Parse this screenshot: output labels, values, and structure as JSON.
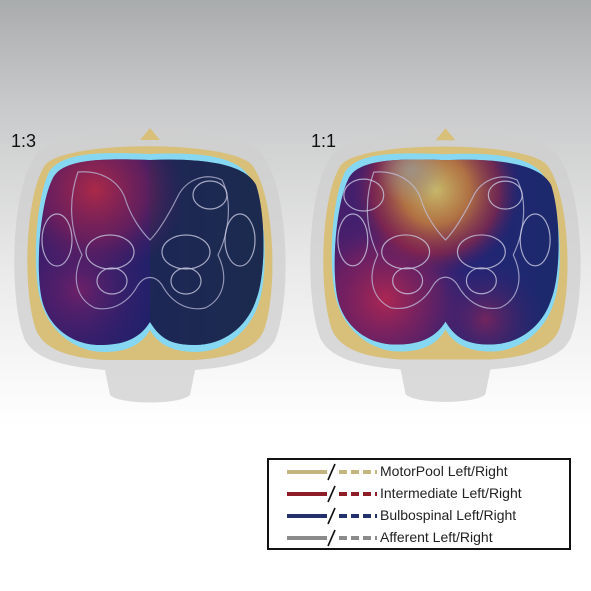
{
  "panels": [
    {
      "label": "1:3"
    },
    {
      "label": "1:1"
    }
  ],
  "legend": {
    "items": [
      {
        "label": "MotorPool Left/Right",
        "color": "#c2b57e"
      },
      {
        "label": "Intermediate Left/Right",
        "color": "#8f1d27"
      },
      {
        "label": "Bulbospinal Left/Right",
        "color": "#23306b"
      },
      {
        "label": "Afferent Left/Right",
        "color": "#8b8b8b"
      }
    ]
  },
  "colors": {
    "outer_tissue": "#c9c9c9",
    "dura": "#d8c07a",
    "csf": "#86d8f2",
    "navy": "#1e2a5e",
    "magenta": "#b2234f",
    "yellow": "#c9c06a"
  }
}
